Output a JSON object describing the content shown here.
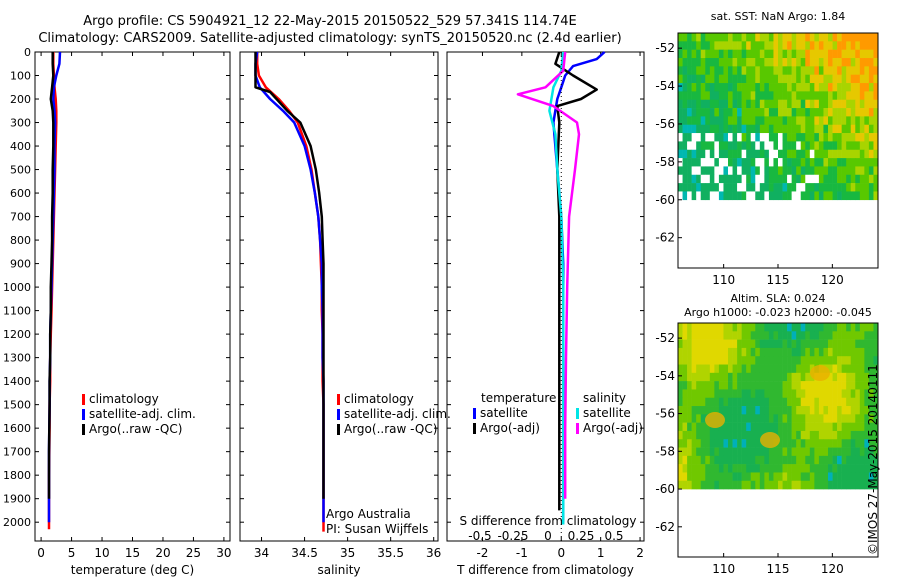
{
  "titles": {
    "line1": "Argo profile: CS 5904921_12 22-May-2015 20150522_529 57.341S 114.74E",
    "line2": "Climatology: CARS2009. Satellite-adjusted climatology: synTS_20150520.nc (2.4d earlier)"
  },
  "credit": "©IMOS 27-May-2015 20140111",
  "colors": {
    "climatology": "#ff0000",
    "satellite": "#0000ff",
    "argo": "#000000",
    "satellite_s": "#00e5e5",
    "argo_s": "#ff00ff"
  },
  "chart_data": [
    {
      "type": "line",
      "xlabel": "temperature (deg C)",
      "ylim": [
        2080,
        0
      ],
      "xlim": [
        -1,
        31
      ],
      "xticks": [
        "0",
        "5",
        "10",
        "15",
        "20",
        "25",
        "30"
      ],
      "yticks": [
        "0",
        "100",
        "200",
        "300",
        "400",
        "500",
        "600",
        "700",
        "800",
        "900",
        "1000",
        "1100",
        "1200",
        "1300",
        "1400",
        "1500",
        "1600",
        "1700",
        "1800",
        "1900",
        "2000"
      ],
      "legend": [
        "climatology",
        "satellite-adj. clim.",
        "Argo(..raw -QC)"
      ],
      "series": [
        {
          "name": "climatology",
          "color": "#ff0000",
          "x": [
            2.0,
            2.0,
            2.1,
            2.2,
            2.4,
            2.5,
            2.5,
            2.4,
            2.3,
            2.2,
            2.1,
            2.0,
            1.9,
            1.8,
            1.7,
            1.6,
            1.5,
            1.5,
            1.4,
            1.4,
            1.3,
            1.3,
            1.3
          ],
          "y": [
            0,
            50,
            100,
            150,
            200,
            250,
            300,
            400,
            500,
            600,
            700,
            800,
            900,
            1000,
            1100,
            1200,
            1300,
            1400,
            1500,
            1600,
            1800,
            2000,
            2030
          ]
        },
        {
          "name": "satellite-adj. clim.",
          "color": "#0000ff",
          "x": [
            3.1,
            3.0,
            2.5,
            2.1,
            2.0,
            2.2,
            2.3,
            2.2,
            2.2,
            2.1,
            2.0,
            1.9,
            1.8,
            1.7,
            1.6,
            1.5,
            1.5,
            1.4,
            1.4,
            1.3,
            1.3,
            1.3
          ],
          "y": [
            0,
            50,
            100,
            150,
            200,
            250,
            300,
            400,
            500,
            600,
            700,
            800,
            900,
            1000,
            1100,
            1200,
            1300,
            1400,
            1500,
            1700,
            1900,
            2000
          ]
        },
        {
          "name": "Argo(..raw -QC)",
          "color": "#000000",
          "x": [
            1.9,
            1.9,
            2.0,
            1.8,
            1.6,
            1.9,
            2.0,
            2.0,
            1.9,
            1.9,
            1.8,
            1.8,
            1.7,
            1.6,
            1.6,
            1.5,
            1.5,
            1.4,
            1.4,
            1.3,
            1.3
          ],
          "y": [
            0,
            50,
            100,
            150,
            200,
            250,
            300,
            400,
            500,
            600,
            700,
            800,
            900,
            1000,
            1100,
            1200,
            1300,
            1400,
            1500,
            1700,
            1900
          ]
        }
      ]
    },
    {
      "type": "line",
      "xlabel": "salinity",
      "ylim": [
        2080,
        0
      ],
      "xlim": [
        33.75,
        36.05
      ],
      "xticks": [
        "34",
        "34.5",
        "35",
        "35.5",
        "36"
      ],
      "legend": [
        "climatology",
        "satellite-adj. clim.",
        "Argo(..raw -QC)"
      ],
      "annotation": [
        "Argo Australia",
        "PI: Susan Wijffels"
      ],
      "series": [
        {
          "name": "climatology",
          "color": "#ff0000",
          "x": [
            33.95,
            33.95,
            33.97,
            34.05,
            34.2,
            34.32,
            34.42,
            34.52,
            34.58,
            34.62,
            34.66,
            34.68,
            34.69,
            34.7,
            34.7,
            34.71,
            34.71,
            34.71,
            34.72,
            34.72,
            34.72,
            34.72,
            34.72
          ],
          "y": [
            0,
            50,
            100,
            150,
            200,
            250,
            300,
            400,
            500,
            600,
            700,
            800,
            900,
            1000,
            1100,
            1200,
            1300,
            1400,
            1500,
            1700,
            1900,
            2000,
            2040
          ]
        },
        {
          "name": "satellite-adj. clim.",
          "color": "#0000ff",
          "x": [
            33.95,
            33.93,
            33.93,
            33.98,
            34.1,
            34.25,
            34.38,
            34.5,
            34.57,
            34.62,
            34.66,
            34.68,
            34.7,
            34.7,
            34.71,
            34.71,
            34.71,
            34.72,
            34.72,
            34.72,
            34.72,
            34.72
          ],
          "y": [
            0,
            50,
            100,
            150,
            200,
            250,
            300,
            400,
            500,
            600,
            700,
            800,
            900,
            1000,
            1100,
            1200,
            1300,
            1400,
            1500,
            1700,
            1900,
            2000
          ]
        },
        {
          "name": "Argo(..raw -QC)",
          "color": "#000000",
          "x": [
            33.93,
            33.93,
            33.93,
            33.93,
            34.1,
            34.3,
            34.45,
            34.57,
            34.63,
            34.67,
            34.7,
            34.71,
            34.72,
            34.72,
            34.72,
            34.72,
            34.72,
            34.72,
            34.72
          ],
          "y": [
            0,
            50,
            100,
            150,
            170,
            250,
            300,
            400,
            500,
            600,
            700,
            800,
            900,
            1000,
            1100,
            1300,
            1500,
            1700,
            1900
          ]
        }
      ]
    },
    {
      "type": "line",
      "xlabel": "T difference from climatology",
      "xlabel_top": "S difference from climatology",
      "ylim": [
        2080,
        0
      ],
      "xlim": [
        -2.9,
        2.1
      ],
      "xticks": [
        "-2",
        "-1",
        "0",
        "1",
        "2"
      ],
      "xticks_s": [
        "-0.5",
        "-0.25",
        "0",
        "0.25",
        "0.5"
      ],
      "legend_headers": [
        "temperature",
        "salinity"
      ],
      "legend": [
        "satellite",
        "Argo(-adj)",
        "satellite",
        "Argo(-adj)"
      ],
      "series": [
        {
          "name": "satellite",
          "color": "#0000ff",
          "x": [
            1.1,
            0.9,
            0.3,
            0.1,
            0.0,
            -0.1,
            -0.2,
            -0.1,
            0.0,
            0.05,
            0.05,
            0.05,
            0.05,
            0.05,
            0.05
          ],
          "y": [
            0,
            30,
            60,
            100,
            150,
            200,
            300,
            500,
            700,
            900,
            1200,
            1500,
            1700,
            1900,
            2000
          ]
        },
        {
          "name": "Argo(-adj)",
          "color": "#000000",
          "x": [
            -0.05,
            -0.15,
            0.3,
            0.9,
            0.5,
            -0.1,
            -0.05,
            -0.1,
            -0.05,
            -0.05,
            -0.05,
            -0.05,
            -0.05,
            -0.05
          ],
          "y": [
            0,
            50,
            100,
            160,
            200,
            230,
            300,
            500,
            700,
            900,
            1200,
            1500,
            1800,
            1950
          ]
        },
        {
          "name": "satellite",
          "color": "#00e5e5",
          "x": [
            0.05,
            0.0,
            -0.2,
            -0.3,
            -0.15,
            -0.1,
            0.0,
            0.05,
            0.05,
            0.05,
            0.05,
            0.05
          ],
          "y": [
            0,
            80,
            150,
            250,
            350,
            500,
            700,
            1000,
            1300,
            1600,
            1900,
            2010
          ]
        },
        {
          "name": "Argo(-adj)",
          "color": "#ff00ff",
          "x": [
            0.1,
            0.05,
            -0.4,
            -1.1,
            -0.2,
            0.4,
            0.45,
            0.35,
            0.2,
            0.15,
            0.12,
            0.1,
            0.1
          ],
          "y": [
            0,
            80,
            150,
            180,
            230,
            300,
            350,
            500,
            700,
            1000,
            1300,
            1600,
            1900
          ]
        }
      ]
    },
    {
      "type": "heatmap",
      "title": "sat. SST: NaN Argo: 1.84",
      "xticks": [
        "110",
        "115",
        "120"
      ],
      "yticks": [
        "-52",
        "-54",
        "-56",
        "-58",
        "-60",
        "-62"
      ],
      "xlim": [
        105.8,
        124.2
      ],
      "ylim": [
        -63.6,
        -51.2
      ]
    },
    {
      "type": "heatmap",
      "title": "Altim. SLA: 0.024",
      "subtitle": "Argo h1000: -0.023 h2000: -0.045",
      "xticks": [
        "110",
        "115",
        "120"
      ],
      "yticks": [
        "-52",
        "-54",
        "-56",
        "-58",
        "-60",
        "-62"
      ],
      "xlim": [
        105.8,
        124.2
      ],
      "ylim": [
        -63.6,
        -51.2
      ]
    }
  ]
}
